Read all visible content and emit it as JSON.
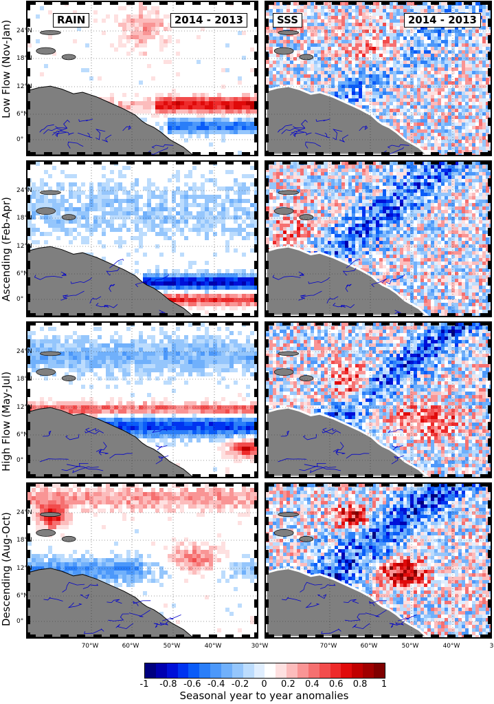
{
  "panels_header": {
    "rain_label": "RAIN",
    "sss_label": "SSS",
    "period_label": "2014 - 2013"
  },
  "rows": [
    {
      "label": "Low Flow (Nov-Jan)"
    },
    {
      "label": "Ascending (Feb-Apr)"
    },
    {
      "label": "High Flow (May-Jul)"
    },
    {
      "label": "Descending (Aug-Oct)"
    }
  ],
  "lat_ticks": [
    "24°N",
    "18°N",
    "12°N",
    "6°N",
    "0°"
  ],
  "lon_ticks": [
    "70°W",
    "60°W",
    "50°W",
    "40°W",
    "30°W"
  ],
  "colorbar": {
    "title": "Seasonal year to year anomalies",
    "ticks": [
      "-1",
      "-0.8",
      "-0.6",
      "-0.4",
      "-0.2",
      "0",
      "0.2",
      "0.4",
      "0.6",
      "0.8",
      "1"
    ],
    "colors": [
      "#00007f",
      "#0000b0",
      "#0010d8",
      "#0034f0",
      "#0a5cf8",
      "#2a7ef8",
      "#4c98fa",
      "#70b0fb",
      "#95c6fc",
      "#bcdcfd",
      "#e0eefe",
      "#ffffff",
      "#fee0e0",
      "#fcbcbc",
      "#f99595",
      "#f57070",
      "#f24c4c",
      "#ee2a2a",
      "#e00a0a",
      "#c00000",
      "#a00000",
      "#7f0000"
    ],
    "range": [
      -1,
      1
    ]
  },
  "land_color": "#7f7f7f",
  "river_color": "#0000cc"
}
